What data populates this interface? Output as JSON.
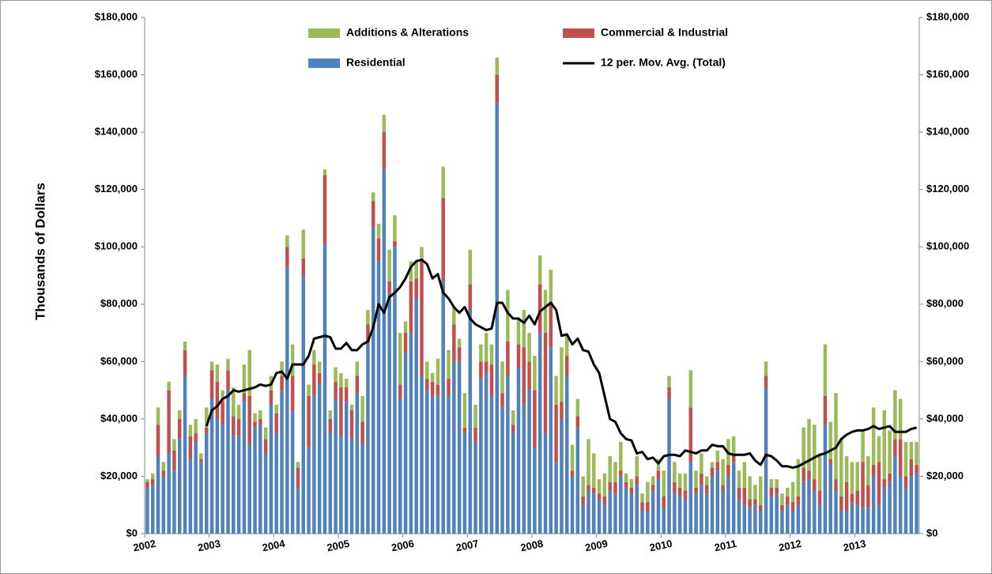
{
  "chart_data": {
    "type": "bar",
    "y_label": "Thousands of Dollars",
    "categories": [
      "2002",
      null,
      null,
      null,
      null,
      null,
      null,
      null,
      null,
      null,
      null,
      null,
      "2003",
      null,
      null,
      null,
      null,
      null,
      null,
      null,
      null,
      null,
      null,
      null,
      "2004",
      null,
      null,
      null,
      null,
      null,
      null,
      null,
      null,
      null,
      null,
      null,
      "2005",
      null,
      null,
      null,
      null,
      null,
      null,
      null,
      null,
      null,
      null,
      null,
      "2006",
      null,
      null,
      null,
      null,
      null,
      null,
      null,
      null,
      null,
      null,
      null,
      "2007",
      null,
      null,
      null,
      null,
      null,
      null,
      null,
      null,
      null,
      null,
      null,
      "2008",
      null,
      null,
      null,
      null,
      null,
      null,
      null,
      null,
      null,
      null,
      null,
      "2009",
      null,
      null,
      null,
      null,
      null,
      null,
      null,
      null,
      null,
      null,
      null,
      "2010",
      null,
      null,
      null,
      null,
      null,
      null,
      null,
      null,
      null,
      null,
      null,
      "2011",
      null,
      null,
      null,
      null,
      null,
      null,
      null,
      null,
      null,
      null,
      null,
      "2012",
      null,
      null,
      null,
      null,
      null,
      null,
      null,
      null,
      null,
      null,
      null,
      "2013",
      null,
      null,
      null,
      null,
      null,
      null,
      null,
      null,
      null,
      null,
      null
    ],
    "series": [
      {
        "name": "Residential",
        "color": "#4f81bd",
        "values": [
          16000,
          17000,
          27000,
          20000,
          28000,
          22000,
          33000,
          55000,
          26000,
          32000,
          25000,
          35000,
          47000,
          40000,
          38000,
          50000,
          34000,
          34000,
          46000,
          31000,
          37000,
          38000,
          28000,
          45000,
          35000,
          50000,
          93000,
          43000,
          16000,
          90000,
          30000,
          48000,
          52000,
          101000,
          35000,
          47000,
          34000,
          46000,
          33000,
          49000,
          31000,
          66000,
          107000,
          95000,
          127000,
          84000,
          100000,
          47000,
          63000,
          70000,
          82000,
          55000,
          50000,
          48000,
          48000,
          88000,
          48000,
          60000,
          60000,
          35000,
          78000,
          32000,
          54000,
          56000,
          48000,
          150000,
          44000,
          55000,
          35000,
          58000,
          45000,
          50000,
          30000,
          70000,
          35000,
          65000,
          25000,
          40000,
          55000,
          20000,
          37000,
          10000,
          15000,
          14000,
          12000,
          10000,
          15000,
          14000,
          20000,
          16000,
          14000,
          17000,
          8000,
          8000,
          15000,
          19000,
          9000,
          47000,
          14000,
          13000,
          12000,
          25000,
          14000,
          17000,
          14000,
          20000,
          22000,
          15000,
          20000,
          25000,
          12000,
          10000,
          9000,
          10000,
          8000,
          51000,
          13000,
          14000,
          8000,
          10000,
          8000,
          10000,
          18000,
          19000,
          15000,
          10000,
          38000,
          24000,
          15000,
          8000,
          8000,
          11000,
          10000,
          9000,
          9000,
          20000,
          10000,
          16000,
          18000,
          27000,
          20000,
          16000,
          20000,
          21000
        ]
      },
      {
        "name": "Commercial & Industrial",
        "color": "#c0504d",
        "values": [
          2000,
          2000,
          11000,
          2000,
          22000,
          7000,
          7000,
          9000,
          8000,
          3000,
          1000,
          2000,
          10000,
          13000,
          8000,
          7000,
          7000,
          6000,
          3000,
          17000,
          2000,
          2000,
          5000,
          5000,
          7000,
          5000,
          7000,
          12000,
          7000,
          6000,
          18000,
          11000,
          4000,
          24000,
          5000,
          6000,
          17000,
          5000,
          10000,
          6000,
          8000,
          7000,
          9000,
          8000,
          13000,
          4000,
          2000,
          5000,
          7000,
          18000,
          7000,
          40000,
          4000,
          5000,
          4000,
          29000,
          6000,
          13000,
          5000,
          2000,
          9000,
          5000,
          6000,
          4000,
          11000,
          10000,
          5000,
          12000,
          3000,
          8000,
          20000,
          10000,
          20000,
          17000,
          35000,
          15000,
          20000,
          6000,
          7000,
          2000,
          4000,
          3000,
          2000,
          2000,
          2000,
          3000,
          3000,
          4000,
          2000,
          2000,
          2000,
          3000,
          3000,
          3000,
          2000,
          3000,
          4000,
          4000,
          4000,
          3000,
          3000,
          19000,
          2000,
          4000,
          3000,
          3000,
          3000,
          2000,
          4000,
          3000,
          4000,
          6000,
          3000,
          2000,
          2000,
          4000,
          3000,
          2000,
          2000,
          3000,
          3000,
          3000,
          5000,
          3000,
          4000,
          5000,
          10000,
          2000,
          4000,
          5000,
          10000,
          3000,
          5000,
          16000,
          8000,
          4000,
          15000,
          3000,
          3000,
          6000,
          13000,
          4000,
          6000,
          3000
        ]
      },
      {
        "name": "Additions & Alterations",
        "color": "#9bbb59",
        "values": [
          1000,
          2000,
          6000,
          3000,
          3000,
          4000,
          3000,
          3000,
          4000,
          5000,
          2000,
          7000,
          3000,
          6000,
          4000,
          4000,
          10000,
          5000,
          10000,
          16000,
          3000,
          3000,
          4000,
          5000,
          3000,
          5000,
          4000,
          11000,
          2000,
          10000,
          4000,
          5000,
          4000,
          2000,
          3000,
          5000,
          5000,
          3000,
          2000,
          5000,
          9000,
          5000,
          3000,
          5000,
          6000,
          11000,
          9000,
          18000,
          4000,
          7000,
          6000,
          5000,
          6000,
          3000,
          9000,
          11000,
          10000,
          6000,
          3000,
          12000,
          12000,
          8000,
          6000,
          10000,
          7000,
          6000,
          11000,
          18000,
          5000,
          9000,
          13000,
          10000,
          12000,
          10000,
          15000,
          12000,
          10000,
          19000,
          7000,
          9000,
          6000,
          7000,
          16000,
          12000,
          5000,
          8000,
          9000,
          7000,
          10000,
          3000,
          3000,
          7000,
          3000,
          7000,
          3000,
          4000,
          9000,
          4000,
          7000,
          5000,
          6000,
          13000,
          6000,
          7000,
          3000,
          2000,
          4000,
          9000,
          9000,
          6000,
          6000,
          9000,
          8000,
          5000,
          10000,
          5000,
          3000,
          3000,
          4000,
          3000,
          7000,
          13000,
          14000,
          18000,
          19000,
          13000,
          18000,
          13000,
          30000,
          20000,
          9000,
          11000,
          10000,
          11000,
          10000,
          20000,
          9000,
          24000,
          15000,
          17000,
          14000,
          12000,
          6000,
          8000
        ]
      },
      {
        "name": "12 per. Mov. Avg. (Total)",
        "color": "#000000",
        "type": "line",
        "values": [
          null,
          null,
          null,
          null,
          null,
          null,
          null,
          null,
          null,
          null,
          null,
          37500,
          43000,
          44500,
          47000,
          48000,
          50000,
          49500,
          50000,
          50500,
          51000,
          52000,
          51500,
          52000,
          56000,
          56500,
          54000,
          59000,
          59000,
          59000,
          62000,
          68000,
          68500,
          69000,
          68500,
          64500,
          64500,
          66500,
          64000,
          64000,
          66000,
          67000,
          72000,
          80000,
          77000,
          82500,
          84000,
          86000,
          89000,
          93000,
          95000,
          95500,
          94000,
          89000,
          90500,
          84000,
          82000,
          79000,
          77000,
          79000,
          75000,
          73000,
          72000,
          71000,
          71500,
          80500,
          80500,
          77000,
          75000,
          75000,
          73500,
          76000,
          73000,
          77500,
          79000,
          80500,
          78000,
          69000,
          69500,
          66000,
          68000,
          64000,
          63500,
          59000,
          56000,
          48000,
          40000,
          39000,
          35000,
          33000,
          32500,
          28000,
          28500,
          26000,
          26500,
          24500,
          27000,
          27500,
          27500,
          27000,
          29000,
          28500,
          28000,
          29000,
          29000,
          31000,
          30500,
          30500,
          28000,
          27500,
          27500,
          27500,
          28000,
          25500,
          24000,
          27500,
          27000,
          25500,
          23500,
          23500,
          23000,
          23500,
          24500,
          25500,
          26500,
          27500,
          28000,
          29000,
          30000,
          33000,
          34500,
          35500,
          36000,
          36000,
          36500,
          37500,
          36500,
          37000,
          37500,
          35500,
          35500,
          35500,
          36500,
          37000
        ]
      }
    ],
    "ylim": [
      0,
      180000
    ],
    "yticks": [
      {
        "value": 0,
        "label": "$0"
      },
      {
        "value": 20000,
        "label": "$20,000"
      },
      {
        "value": 40000,
        "label": "$40,000"
      },
      {
        "value": 60000,
        "label": "$60,000"
      },
      {
        "value": 80000,
        "label": "$80,000"
      },
      {
        "value": 100000,
        "label": "$100,000"
      },
      {
        "value": 120000,
        "label": "$120,000"
      },
      {
        "value": 140000,
        "label": "$140,000"
      },
      {
        "value": 160000,
        "label": "$160,000"
      },
      {
        "value": 180000,
        "label": "$180,000"
      }
    ],
    "y2lim": [
      0,
      180000
    ],
    "y2ticks": [
      {
        "value": 0,
        "label": "$0"
      },
      {
        "value": 20000,
        "label": "$20,000"
      },
      {
        "value": 40000,
        "label": "$40,000"
      },
      {
        "value": 60000,
        "label": "$60,000"
      },
      {
        "value": 80000,
        "label": "$80,000"
      },
      {
        "value": 100000,
        "label": "$100,000"
      },
      {
        "value": 120000,
        "label": "$120,000"
      },
      {
        "value": 140000,
        "label": "$140,000"
      },
      {
        "value": 160000,
        "label": "$160,000"
      },
      {
        "value": 180000,
        "label": "$180,000"
      }
    ],
    "legend": "top",
    "grid": false
  }
}
